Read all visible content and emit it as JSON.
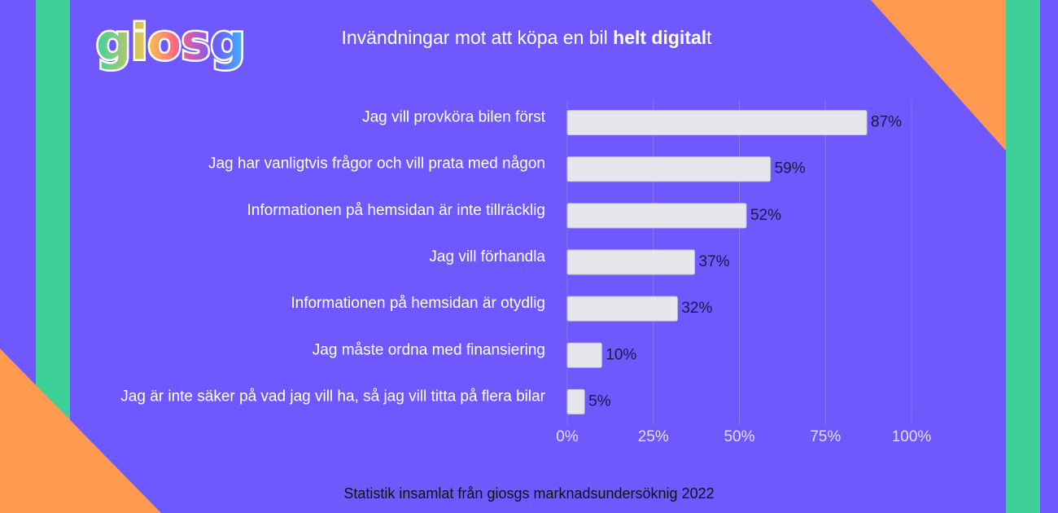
{
  "chart_data": {
    "type": "barh",
    "logo": "giosg",
    "title": [
      "Invändningar mot att köpa en bil ",
      "helt digital",
      "t"
    ],
    "categories": [
      "Jag vill provköra bilen först",
      "Jag har vanligtvis frågor och vill prata med någon",
      "Informationen på hemsidan är inte tillräcklig",
      "Jag vill förhandla",
      "Informationen på hemsidan är otydlig",
      "Jag måste ordna med finansiering",
      "Jag är inte säker på vad jag vill ha, så jag vill titta på flera bilar"
    ],
    "values": [
      87,
      59,
      52,
      37,
      32,
      10,
      5
    ],
    "value_labels": [
      "87%",
      "59%",
      "52%",
      "37%",
      "32%",
      "10%",
      "5%"
    ],
    "color": "#e6e6ec",
    "xlim": [
      0,
      100
    ],
    "xticks": [
      {
        "value": 0,
        "label": "0%"
      },
      {
        "value": 25,
        "label": "25%"
      },
      {
        "value": 50,
        "label": "50%"
      },
      {
        "value": 75,
        "label": "75%"
      },
      {
        "value": 100,
        "label": "100%"
      }
    ],
    "grid": true,
    "caption": "Statistik insamlat från giosgs marknadsundersöknig 2022"
  }
}
